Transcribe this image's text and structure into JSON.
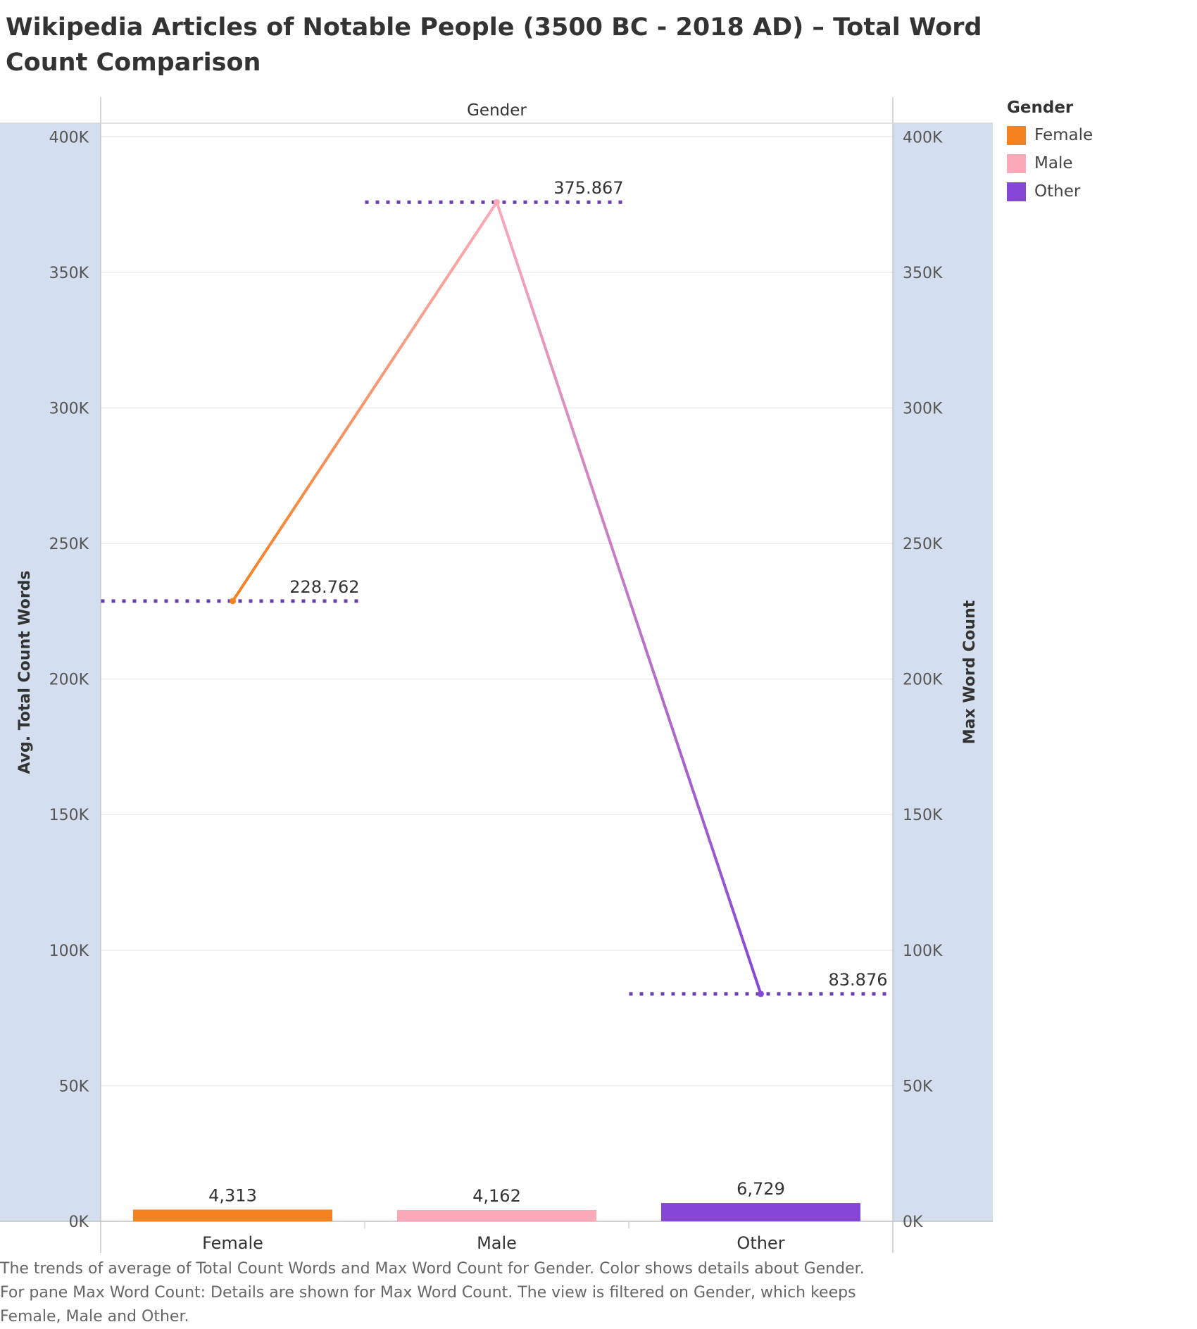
{
  "title": "Wikipedia Articles of Notable People (3500 BC - 2018 AD) – Total Word Count Comparison",
  "caption": "The trends of average of Total Count Words and Max Word Count for Gender.  Color shows details about Gender.  For pane Max Word Count:  Details are shown for Max Word Count. The view is filtered on Gender, which keeps Female, Male and Other.",
  "colors": {
    "Female": "#F5821F",
    "Male": "#FBA9B8",
    "Other": "#8646D6",
    "reference_line": "#6A3FB0",
    "axis_band": "#D3DFEF"
  },
  "legend": {
    "title": "Gender",
    "items": [
      "Female",
      "Male",
      "Other"
    ]
  },
  "chart_data": {
    "type": "bar+line",
    "header": "Gender",
    "categories": [
      "Female",
      "Male",
      "Other"
    ],
    "series": [
      {
        "name": "Avg. Total Count Words",
        "type": "bar",
        "axis": "left",
        "values": [
          4313,
          4162,
          6729
        ],
        "labels": [
          "4,313",
          "4,162",
          "6,729"
        ]
      },
      {
        "name": "Max Word Count",
        "type": "line",
        "axis": "right",
        "values": [
          228762,
          375867,
          83876
        ],
        "labels": [
          "228.762",
          "375.867",
          "83.876"
        ]
      }
    ],
    "y_left": {
      "label": "Avg. Total Count Words",
      "ylim": [
        0,
        405000
      ],
      "ticks": [
        "0K",
        "50K",
        "100K",
        "150K",
        "200K",
        "250K",
        "300K",
        "350K",
        "400K"
      ]
    },
    "y_right": {
      "label": "Max Word Count",
      "ylim": [
        0,
        405000
      ],
      "ticks": [
        "0K",
        "50K",
        "100K",
        "150K",
        "200K",
        "250K",
        "300K",
        "350K",
        "400K"
      ]
    },
    "grid": true,
    "legend_position": "right"
  }
}
